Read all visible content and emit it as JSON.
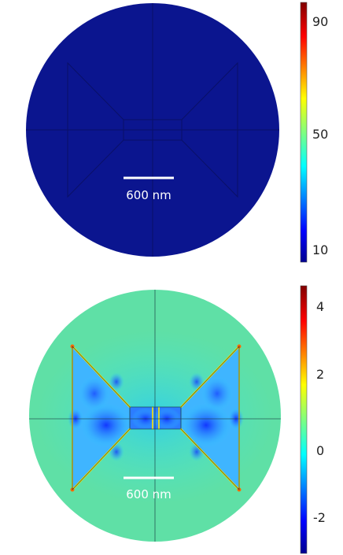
{
  "panels": [
    {
      "scale_bar_label": "600 nm",
      "colorbar_ticks": [
        "90",
        "50",
        "10"
      ]
    },
    {
      "scale_bar_label": "600 nm",
      "colorbar_ticks": [
        "4",
        "2",
        "0",
        "-2"
      ]
    }
  ],
  "colors": {
    "field_background_top": "#0b158f",
    "field_background_bottom": "#5fe0a6",
    "hotspot": "#ffe600"
  }
}
